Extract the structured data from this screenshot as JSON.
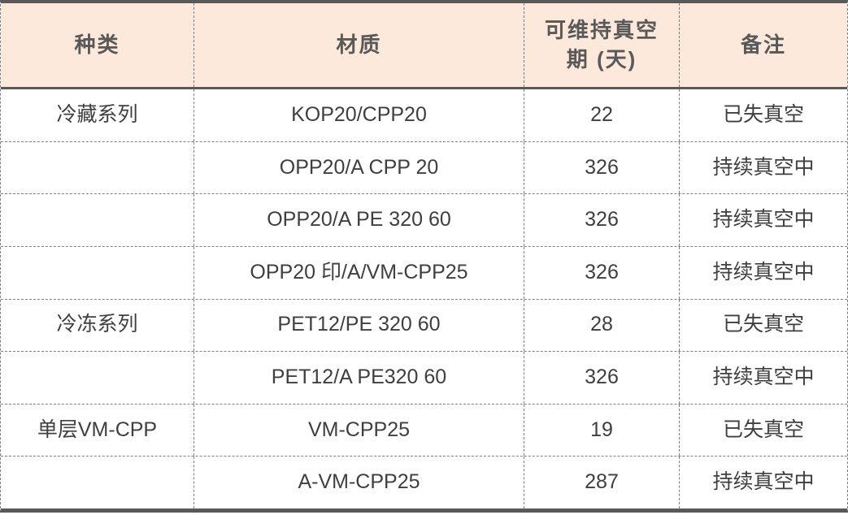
{
  "table": {
    "columns": [
      {
        "label": "种类"
      },
      {
        "label": "材质"
      },
      {
        "label": "可维持真空\n期 (天)"
      },
      {
        "label": "备注"
      }
    ],
    "rows": [
      {
        "category": "冷藏系列",
        "material": "KOP20/CPP20",
        "days": "22",
        "note": "已失真空"
      },
      {
        "category": "",
        "material": "OPP20/A CPP 20",
        "days": "326",
        "note": "持续真空中"
      },
      {
        "category": "",
        "material": "OPP20/A PE 320 60",
        "days": "326",
        "note": "持续真空中"
      },
      {
        "category": "",
        "material": "OPP20 印/A/VM-CPP25",
        "days": "326",
        "note": "持续真空中"
      },
      {
        "category": "冷冻系列",
        "material": "PET12/PE 320 60",
        "days": "28",
        "note": "已失真空"
      },
      {
        "category": "",
        "material": "PET12/A PE320 60",
        "days": "326",
        "note": "持续真空中"
      },
      {
        "category": "单层VM-CPP",
        "material": "VM-CPP25",
        "days": "19",
        "note": "已失真空"
      },
      {
        "category": "",
        "material": "A-VM-CPP25",
        "days": "287",
        "note": "持续真空中"
      }
    ],
    "colors": {
      "header_bg": "#fce9db",
      "header_text": "#595959",
      "body_text": "#3f3f3f",
      "solid_border": "#595959",
      "dashed_border": "#808080"
    }
  },
  "chart_data": {
    "type": "table",
    "title": "",
    "columns": [
      "种类",
      "材质",
      "可维持真空期 (天)",
      "备注"
    ],
    "rows": [
      [
        "冷藏系列",
        "KOP20/CPP20",
        22,
        "已失真空"
      ],
      [
        "",
        "OPP20/A CPP 20",
        326,
        "持续真空中"
      ],
      [
        "",
        "OPP20/A PE 320 60",
        326,
        "持续真空中"
      ],
      [
        "",
        "OPP20 印/A/VM-CPP25",
        326,
        "持续真空中"
      ],
      [
        "冷冻系列",
        "PET12/PE 320 60",
        28,
        "已失真空"
      ],
      [
        "",
        "PET12/A PE320 60",
        326,
        "持续真空中"
      ],
      [
        "单层VM-CPP",
        "VM-CPP25",
        19,
        "已失真空"
      ],
      [
        "",
        "A-VM-CPP25",
        287,
        "持续真空中"
      ]
    ]
  }
}
